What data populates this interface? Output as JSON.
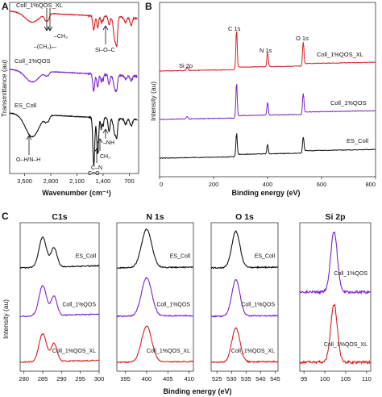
{
  "panels": {
    "a": "A",
    "b": "B",
    "c": "C"
  },
  "chart_data": [
    {
      "type": "line",
      "panel": "A",
      "xlabel": "Wavenumber (cm⁻¹)",
      "ylabel": "Transmittance (au)",
      "x_ticks": [
        "3,500",
        "2,800",
        "2,100",
        "1,400",
        "700"
      ],
      "xlim": [
        3900,
        450
      ],
      "series": [
        {
          "name": "Coll_1%QOS_XL",
          "color": "#d42020"
        },
        {
          "name": "Coll_1%QOS",
          "color": "#7a22c8"
        },
        {
          "name": "ES_Coll",
          "color": "#111111"
        }
      ],
      "annotations": [
        "–CH₃",
        "–(CH₂)ₙ–",
        "Si–O–C",
        "O–H/N–H",
        "C–N",
        "–NH",
        "CH₂",
        "C=O"
      ]
    },
    {
      "type": "line",
      "panel": "B",
      "xlabel": "Binding energy (eV)",
      "ylabel": "Intensity (au)",
      "x_ticks": [
        "0",
        "200",
        "400",
        "600",
        "800"
      ],
      "xlim": [
        0,
        800
      ],
      "series": [
        {
          "name": "Coll_1%QOS_XL",
          "color": "#d42020"
        },
        {
          "name": "Coll_1%QOS",
          "color": "#7a22c8"
        },
        {
          "name": "ES_Coll",
          "color": "#111111"
        }
      ],
      "peaks": [
        {
          "label": "Si 2p",
          "x": 102
        },
        {
          "label": "C 1s",
          "x": 285
        },
        {
          "label": "N 1s",
          "x": 400
        },
        {
          "label": "O 1s",
          "x": 532
        }
      ]
    },
    {
      "type": "line",
      "panel": "C",
      "xlabel": "Binding energy (eV)",
      "ylabel": "Intensity (au)",
      "subplots": [
        {
          "title": "C1s",
          "x_ticks": [
            "280",
            "285",
            "290",
            "295",
            "300"
          ],
          "xlim": [
            279,
            300
          ],
          "labels": [
            "ES_Coll",
            "Coll_1%QOS",
            "Coll_1%QOS_XL"
          ]
        },
        {
          "title": "N 1s",
          "x_ticks": [
            "395",
            "400",
            "405",
            "410"
          ],
          "xlim": [
            393,
            411
          ],
          "labels": [
            "ES_Coll",
            "Coll_1%QOS",
            "Coll_1%QOS_XL"
          ]
        },
        {
          "title": "O 1s",
          "x_ticks": [
            "525",
            "530",
            "535",
            "540",
            "545"
          ],
          "xlim": [
            523,
            546
          ],
          "labels": [
            "ES_Coll",
            "Coll_1%QOS",
            "Coll_1%QOS_XL"
          ]
        },
        {
          "title": "Si 2p",
          "x_ticks": [
            "95",
            "100",
            "105",
            "110"
          ],
          "xlim": [
            94,
            111
          ],
          "labels": [
            "Coll_1%QOS",
            "Coll_1%QOS_XL"
          ]
        }
      ]
    }
  ]
}
